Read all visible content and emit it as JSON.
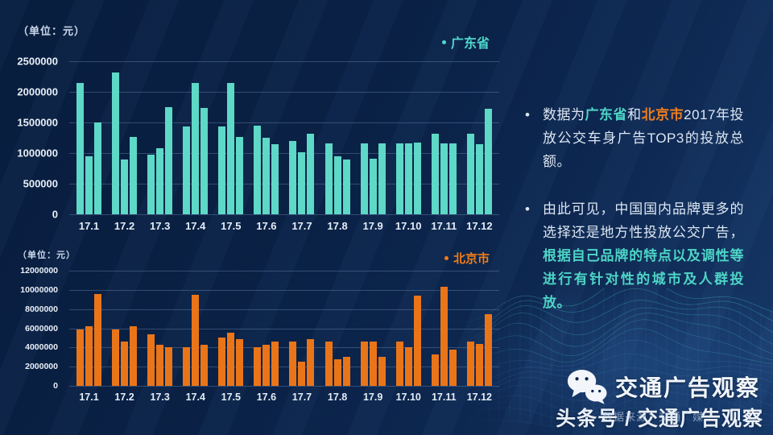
{
  "page": {
    "background": "#0a2145",
    "accent_teal": "#4fd8cc",
    "accent_orange": "#ee7d1e"
  },
  "chart_data": [
    {
      "type": "bar",
      "region": "广东省",
      "unit_label": "（单位：元）",
      "legend": "广东省",
      "legend_position": "top-right",
      "bar_color": "#5ed8c7",
      "grid": true,
      "categories": [
        "17.1",
        "17.2",
        "17.3",
        "17.4",
        "17.5",
        "17.6",
        "17.7",
        "17.8",
        "17.9",
        "17.10",
        "17.11",
        "17.12"
      ],
      "values": [
        [
          2150000,
          950000,
          1500000
        ],
        [
          2320000,
          900000,
          1260000
        ],
        [
          980000,
          1080000,
          1750000
        ],
        [
          1440000,
          2150000,
          1740000
        ],
        [
          1440000,
          2150000,
          1260000
        ],
        [
          1450000,
          1250000,
          1150000
        ],
        [
          1200000,
          1010000,
          1310000
        ],
        [
          1160000,
          950000,
          900000
        ],
        [
          1160000,
          910000,
          1160000
        ],
        [
          1160000,
          1160000,
          1170000
        ],
        [
          1310000,
          1160000,
          1160000
        ],
        [
          1310000,
          1140000,
          1730000
        ]
      ],
      "ylim": [
        0,
        2500000
      ],
      "yticks": [
        0,
        500000,
        1000000,
        1500000,
        2000000,
        2500000
      ]
    },
    {
      "type": "bar",
      "region": "北京市",
      "unit_label": "（单位：元）",
      "legend": "北京市",
      "legend_position": "top-right",
      "bar_color": "#ea7519",
      "grid": true,
      "categories": [
        "17.1",
        "17.2",
        "17.3",
        "17.4",
        "17.5",
        "17.6",
        "17.7",
        "17.8",
        "17.9",
        "17.10",
        "17.11",
        "17.12"
      ],
      "values": [
        [
          5900000,
          6200000,
          9600000
        ],
        [
          5850000,
          4650000,
          6200000
        ],
        [
          5400000,
          4300000,
          4000000
        ],
        [
          4050000,
          9500000,
          4300000
        ],
        [
          5000000,
          5550000,
          4850000
        ],
        [
          4050000,
          4300000,
          4600000
        ],
        [
          4650000,
          2500000,
          4900000
        ],
        [
          4600000,
          2800000,
          3050000
        ],
        [
          4600000,
          4600000,
          3000000
        ],
        [
          4600000,
          4000000,
          9400000
        ],
        [
          3300000,
          10300000,
          3750000
        ],
        [
          4600000,
          4350000,
          7500000
        ]
      ],
      "ylim": [
        0,
        12000000
      ],
      "yticks": [
        0,
        2000000,
        4000000,
        6000000,
        8000000,
        10000000,
        12000000
      ]
    }
  ],
  "right_panel": {
    "bullets": [
      {
        "marker": "•",
        "segments": [
          {
            "text": "数据为",
            "color": "#dde7f3",
            "bold": false
          },
          {
            "text": "广东省",
            "color": "#4ed4c6",
            "bold": true
          },
          {
            "text": "和",
            "color": "#dde7f3",
            "bold": false
          },
          {
            "text": "北京市",
            "color": "#ee7d1e",
            "bold": true
          },
          {
            "text": "2017年投放公交车身广告TOP3的投放总额。",
            "color": "#dde7f3",
            "bold": false
          }
        ]
      },
      {
        "marker": "•",
        "segments": [
          {
            "text": "由此可见，中国国内品牌更多的选择还是地方性投放公交广告，",
            "color": "#dde7f3",
            "bold": false
          },
          {
            "text": "根据自己品牌的特点以及调性等进行有针对性的城市及人群投放。",
            "color": "#4ed4c6",
            "bold": true
          }
        ]
      }
    ]
  },
  "footer": {
    "account_name": "交通广告观察",
    "byline": "头条号 / 交通广告观察",
    "watermark": "数据来源：交通广媒"
  }
}
